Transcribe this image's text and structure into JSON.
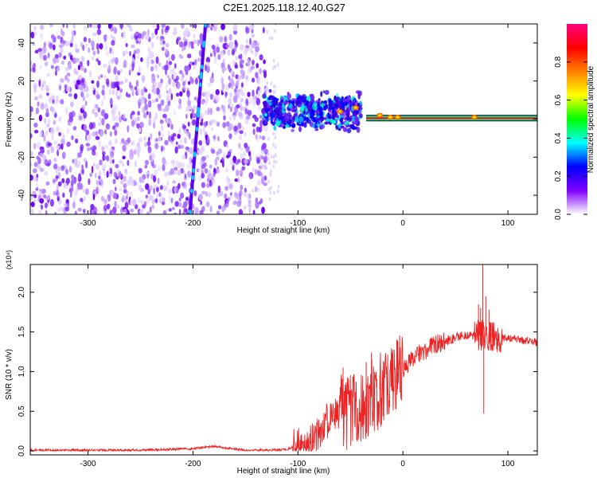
{
  "figure": {
    "title": "C2E1.2025.118.12.40.G27"
  },
  "chart_data": [
    {
      "type": "heatmap",
      "title": "C2E1.2025.118.12.40.G27",
      "xlabel": "Height of straight line (km)",
      "ylabel": "Frequency (Hz)",
      "xlim": [
        -355,
        128
      ],
      "ylim": [
        -50,
        50
      ],
      "x_ticks": [
        -300,
        -200,
        -100,
        0,
        100
      ],
      "y_ticks": [
        -40,
        -20,
        0,
        20,
        40
      ],
      "colorbar": {
        "label": "Normalized spectral amplitude",
        "range": [
          0,
          1
        ],
        "ticks": [
          0.0,
          0.2,
          0.4,
          0.6,
          0.8
        ],
        "tick_labels": [
          "0.0",
          "0.2",
          "0.4",
          "0.6",
          "0.8"
        ],
        "colormap": [
          "#ffffff",
          "#8000ff",
          "#0000ff",
          "#00ffff",
          "#00ff00",
          "#ffff00",
          "#ff8000",
          "#ff0000",
          "#ff0080"
        ]
      },
      "features": {
        "noise_region_x": [
          -355,
          -130
        ],
        "noise_density_colors": [
          "#e2d2ff",
          "#c9a8ff",
          "#a66cff",
          "#8a3cff",
          "#6a00f0"
        ],
        "streak": {
          "x_at_bottom": -203,
          "x_at_top": -188,
          "color": "#5a00ee"
        },
        "transition_cluster": {
          "x_range": [
            -133,
            -40
          ],
          "freq_center": 4,
          "freq_halfwidth": 7
        },
        "carrier_line": {
          "freq": 0.5,
          "x_start": -35,
          "x_end": 128,
          "core_color": "#ff0040",
          "edge_color": "#00c8c8"
        },
        "hot_spots": [
          {
            "x": -5,
            "freq": 1
          },
          {
            "x": -22,
            "freq": 2
          },
          {
            "x": -12,
            "freq": 1
          },
          {
            "x": 68,
            "freq": 1
          },
          {
            "x": -45,
            "freq": 6
          },
          {
            "x": -60,
            "freq": 4
          }
        ]
      }
    },
    {
      "type": "line",
      "xlabel": "Height of straight line (km)",
      "ylabel": "SNR (10 * v/v)",
      "y_multiplier": "(x10⁴)",
      "xlim": [
        -355,
        128
      ],
      "ylim": [
        -0.05,
        2.35
      ],
      "x_ticks": [
        -300,
        -200,
        -100,
        0,
        100
      ],
      "y_ticks": [
        0.0,
        0.5,
        1.0,
        1.5,
        2.0
      ],
      "y_tick_labels": [
        "0.0",
        "0.5",
        "1.0",
        "1.5",
        "2.0"
      ],
      "series": [
        {
          "color": "#ee2222",
          "points": [
            [
              -355,
              0.01
            ],
            [
              -300,
              0.01
            ],
            [
              -250,
              0.01
            ],
            [
              -220,
              0.02
            ],
            [
              -200,
              0.03
            ],
            [
              -180,
              0.06
            ],
            [
              -170,
              0.04
            ],
            [
              -150,
              0.01
            ],
            [
              -130,
              0.01
            ],
            [
              -110,
              0.02
            ],
            [
              -100,
              0.08
            ],
            [
              -95,
              0.12
            ],
            [
              -90,
              0.1
            ],
            [
              -85,
              0.15
            ],
            [
              -80,
              0.2
            ],
            [
              -75,
              0.35
            ],
            [
              -70,
              0.4
            ],
            [
              -65,
              0.45
            ],
            [
              -60,
              0.5
            ],
            [
              -55,
              0.45
            ],
            [
              -50,
              0.5
            ],
            [
              -45,
              0.52
            ],
            [
              -40,
              0.55
            ],
            [
              -35,
              0.62
            ],
            [
              -30,
              0.68
            ],
            [
              -25,
              0.72
            ],
            [
              -20,
              0.8
            ],
            [
              -15,
              0.88
            ],
            [
              -10,
              0.92
            ],
            [
              -5,
              0.98
            ],
            [
              0,
              1.03
            ],
            [
              5,
              1.1
            ],
            [
              10,
              1.17
            ],
            [
              15,
              1.22
            ],
            [
              20,
              1.25
            ],
            [
              25,
              1.3
            ],
            [
              30,
              1.33
            ],
            [
              35,
              1.36
            ],
            [
              40,
              1.38
            ],
            [
              45,
              1.4
            ],
            [
              50,
              1.43
            ],
            [
              55,
              1.45
            ],
            [
              60,
              1.45
            ],
            [
              65,
              1.44
            ],
            [
              70,
              1.45
            ],
            [
              75,
              1.46
            ],
            [
              80,
              1.44
            ],
            [
              85,
              1.43
            ],
            [
              90,
              1.44
            ],
            [
              95,
              1.43
            ],
            [
              100,
              1.42
            ],
            [
              105,
              1.41
            ],
            [
              110,
              1.4
            ],
            [
              115,
              1.39
            ],
            [
              120,
              1.38
            ],
            [
              128,
              1.37
            ]
          ],
          "spikes": [
            [
              -57,
              1.05
            ],
            [
              -35,
              1.12
            ],
            [
              -30,
              1.24
            ],
            [
              -22,
              0.95
            ],
            [
              -10,
              1.25
            ],
            [
              -5,
              0.78
            ],
            [
              0,
              1.13
            ],
            [
              12,
              1.27
            ],
            [
              72,
              1.85
            ],
            [
              74,
              1.8
            ],
            [
              76,
              2.35
            ],
            [
              77,
              0.47
            ],
            [
              79,
              1.95
            ],
            [
              82,
              1.78
            ],
            [
              85,
              1.62
            ]
          ]
        }
      ]
    }
  ]
}
